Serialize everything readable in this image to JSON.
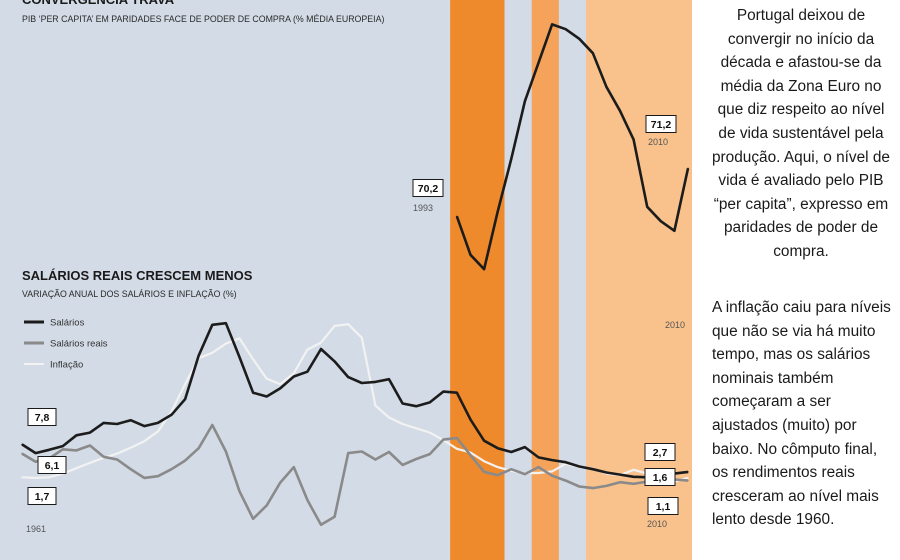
{
  "text_column": {
    "paragraph1": "Portugal deixou de convergir no início da década e afastou-se da média da Zona Euro no que diz respeito ao nível de vida sustentável pela produção. Aqui, o nível de vida é avaliado pelo PIB “per capita”, expresso em paridades de poder de compra.",
    "paragraph2": "A inflação caiu para níveis que não se via há muito tempo, mas os salários nominais também começaram a ser ajustados (muito) por baixo. No cômputo final, os rendimentos reais cresceram ao nível mais lento desde 1960."
  },
  "colors": {
    "panel_bg": "#d3dbe6",
    "band_dark": "#ef8a2c",
    "band_mid": "#f5a35a",
    "band_light": "#f9c28c",
    "salarios": "#1c1c1c",
    "salarios_reais": "#8a8a8a",
    "inflacao": "#f2f2f2",
    "pib": "#1c1c1c"
  },
  "chart_data": [
    {
      "type": "line",
      "title": "CONVERGÊNCIA TRAVA",
      "subtitle": "PIB ‘PER CAPITA’ EM PARIDADES FACE DE PODER DE COMPRA (% MÉDIA EUROPEIA)",
      "x_start_label": "1993",
      "x_end_label": "2010",
      "extra_year_label": "2010",
      "x": [
        1993,
        1994,
        1995,
        1996,
        1997,
        1998,
        1999,
        2000,
        2001,
        2002,
        2003,
        2004,
        2005,
        2006,
        2007,
        2008,
        2009,
        2010
      ],
      "series": [
        {
          "values": [
            70.2,
            69.4,
            69.1,
            70.3,
            71.4,
            72.6,
            73.4,
            74.2,
            74.1,
            73.9,
            73.6,
            72.9,
            72.4,
            71.8,
            70.4,
            70.1,
            69.9,
            71.2
          ]
        }
      ],
      "labels": [
        {
          "text": "70,2",
          "x": 1993,
          "y": 70.2
        },
        {
          "text": "71,2",
          "x": 2010,
          "y": 71.2
        }
      ],
      "ylim": [
        68.5,
        74.5
      ]
    },
    {
      "type": "line",
      "title": "SALÁRIOS REAIS CRESCEM MENOS",
      "subtitle": "VARIAÇÃO ANUAL DOS SALÁRIOS E INFLAÇÃO (%)",
      "x_start_label": "1961",
      "x_end_label": "2010",
      "legend_position": "top-left",
      "x": [
        1961,
        1962,
        1963,
        1964,
        1965,
        1966,
        1967,
        1968,
        1969,
        1970,
        1971,
        1972,
        1973,
        1974,
        1975,
        1976,
        1977,
        1978,
        1979,
        1980,
        1981,
        1982,
        1983,
        1984,
        1985,
        1986,
        1987,
        1988,
        1989,
        1990,
        1991,
        1992,
        1993,
        1994,
        1995,
        1996,
        1997,
        1998,
        1999,
        2000,
        2001,
        2002,
        2003,
        2004,
        2005,
        2006,
        2007,
        2008,
        2009,
        2010
      ],
      "series": [
        {
          "name": "Salários",
          "values": [
            7.8,
            6.2,
            6.8,
            7.5,
            9.5,
            10.0,
            11.8,
            11.6,
            12.3,
            11.2,
            11.8,
            13.3,
            16.2,
            24.3,
            30.0,
            30.3,
            24.0,
            17.4,
            16.7,
            18.2,
            20.4,
            21.3,
            25.5,
            23.2,
            20.3,
            19.2,
            19.4,
            19.9,
            15.4,
            14.9,
            15.6,
            17.6,
            17.4,
            12.4,
            8.5,
            7.1,
            6.4,
            7.3,
            5.4,
            4.9,
            4.5,
            3.7,
            3.2,
            2.6,
            2.2,
            1.8,
            1.7,
            2.0,
            2.4,
            2.7
          ]
        },
        {
          "name": "Salários reais",
          "values": [
            6.1,
            4.6,
            5.2,
            6.9,
            6.7,
            7.6,
            5.5,
            5.0,
            3.2,
            1.6,
            1.9,
            3.2,
            4.8,
            7.1,
            11.4,
            6.5,
            -0.9,
            -6.0,
            -3.5,
            0.7,
            3.6,
            -2.5,
            -7.1,
            -5.6,
            6.2,
            6.5,
            5.0,
            6.4,
            4.0,
            5.1,
            6.0,
            8.7,
            9.0,
            5.8,
            2.7,
            2.1,
            3.2,
            2.3,
            3.6,
            2.0,
            1.1,
            0.0,
            -0.3,
            0.1,
            0.8,
            0.5,
            0.9,
            1.5,
            1.3,
            1.1
          ]
        },
        {
          "name": "Inflação",
          "values": [
            1.7,
            1.6,
            1.7,
            2.4,
            3.4,
            4.4,
            5.3,
            6.1,
            7.2,
            8.4,
            10.2,
            13.9,
            19.0,
            23.8,
            24.8,
            26.5,
            27.5,
            23.6,
            20.0,
            19.0,
            21.0,
            25.4,
            26.7,
            29.8,
            30.1,
            27.6,
            15.0,
            12.8,
            11.6,
            10.8,
            10.0,
            8.6,
            7.0,
            6.3,
            4.7,
            3.6,
            2.9,
            2.5,
            2.5,
            2.8,
            4.2,
            3.6,
            3.3,
            2.4,
            2.1,
            3.1,
            2.4,
            2.6,
            0.9,
            1.6
          ]
        }
      ],
      "labels": [
        {
          "text": "7,8",
          "x": 1961,
          "y": 7.8
        },
        {
          "text": "6,1",
          "x": 1961,
          "y": 6.1
        },
        {
          "text": "1,7",
          "x": 1961,
          "y": 1.7
        },
        {
          "text": "2,7",
          "x": 2010,
          "y": 2.7
        },
        {
          "text": "1,6",
          "x": 2010,
          "y": 1.6
        },
        {
          "text": "1,1",
          "x": 2010,
          "y": 1.1
        }
      ],
      "ylim": [
        -9,
        32
      ]
    }
  ],
  "bands": [
    {
      "from": 1992.5,
      "to": 1996.5,
      "tone": "dark"
    },
    {
      "from": 1998.5,
      "to": 2000.5,
      "tone": "mid"
    },
    {
      "from": 2002.5,
      "to": 2010.5,
      "tone": "light"
    }
  ]
}
